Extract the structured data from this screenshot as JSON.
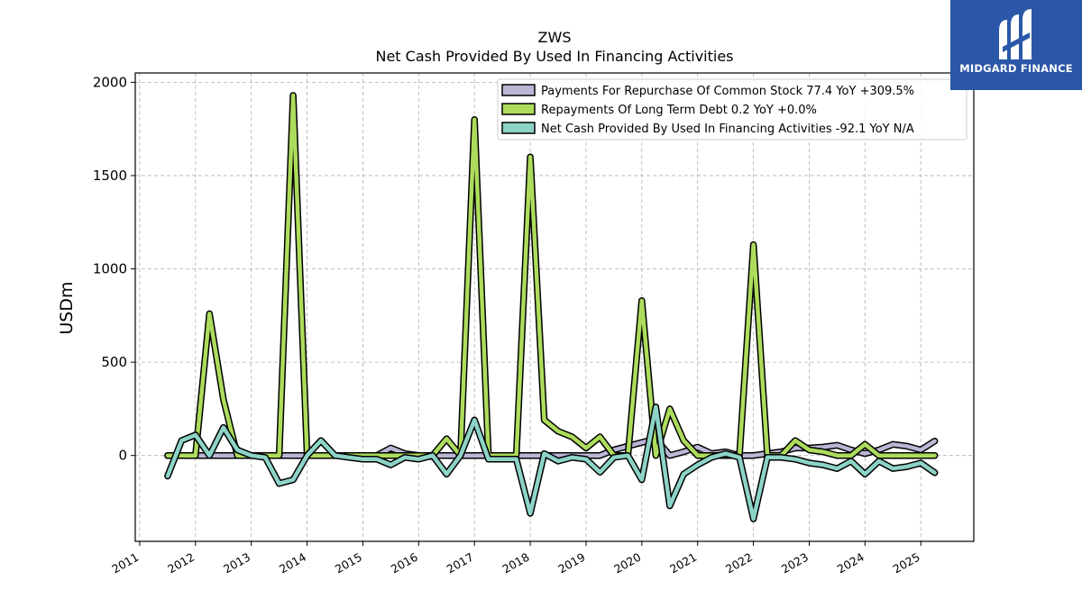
{
  "colors": {
    "repurchase": "#bcb6d6",
    "repayments": "#addc5c",
    "net_cash": "#8dd3c7",
    "outline": "#000000",
    "grid": "#b0b0b0",
    "logo_bg": "#2b57a8"
  },
  "logo": {
    "brand": "MIDGARD FINANCE",
    "icon": "midgard-logo-icon"
  },
  "chart_data": {
    "type": "line",
    "title": "ZWS",
    "subtitle": "Net Cash Provided By Used In Financing Activities",
    "xlabel": "",
    "ylabel": "USDm",
    "xlim": [
      2010.92,
      2025.95
    ],
    "ylim": [
      -460,
      2050
    ],
    "yticks": [
      0,
      500,
      1000,
      1500,
      2000
    ],
    "xticks": [
      "2011",
      "2012",
      "2013",
      "2014",
      "2015",
      "2016",
      "2017",
      "2018",
      "2019",
      "2020",
      "2021",
      "2022",
      "2023",
      "2024",
      "2025"
    ],
    "grid": true,
    "legend_position": "upper right",
    "x": [
      2011.5,
      2011.75,
      2012.0,
      2012.25,
      2012.5,
      2012.75,
      2013.0,
      2013.25,
      2013.5,
      2013.75,
      2014.0,
      2014.25,
      2014.5,
      2014.75,
      2015.0,
      2015.25,
      2015.5,
      2015.75,
      2016.0,
      2016.25,
      2016.5,
      2016.75,
      2017.0,
      2017.25,
      2017.5,
      2017.75,
      2018.0,
      2018.25,
      2018.5,
      2018.75,
      2019.0,
      2019.25,
      2019.5,
      2019.75,
      2020.0,
      2020.25,
      2020.5,
      2020.75,
      2021.0,
      2021.25,
      2021.5,
      2021.75,
      2022.0,
      2022.25,
      2022.5,
      2022.75,
      2023.0,
      2023.25,
      2023.5,
      2023.75,
      2024.0,
      2024.25,
      2024.5,
      2024.75,
      2025.0,
      2025.25
    ],
    "series": [
      {
        "name": "Payments For Repurchase Of Common Stock  77.4 YoY +309.5%",
        "color_key": "repurchase",
        "values": [
          0,
          0,
          0,
          0,
          0,
          0,
          0,
          0,
          0,
          0,
          0,
          0,
          0,
          0,
          0,
          0,
          40,
          10,
          0,
          0,
          0,
          0,
          0,
          0,
          0,
          0,
          0,
          0,
          0,
          0,
          0,
          0,
          30,
          50,
          70,
          90,
          0,
          20,
          45,
          10,
          20,
          0,
          0,
          10,
          20,
          40,
          40,
          45,
          55,
          30,
          10,
          30,
          60,
          50,
          30,
          77.4
        ]
      },
      {
        "name": "Repayments Of Long Term Debt  0.2 YoY +0.0%",
        "color_key": "repayments",
        "values": [
          0,
          0,
          0,
          760,
          300,
          0,
          0,
          0,
          0,
          1930,
          0,
          0,
          0,
          0,
          0,
          0,
          0,
          0,
          0,
          0,
          90,
          0,
          1800,
          0,
          0,
          0,
          1600,
          190,
          130,
          100,
          40,
          100,
          0,
          0,
          830,
          0,
          250,
          80,
          0,
          0,
          0,
          0,
          1130,
          0,
          0,
          80,
          30,
          20,
          0,
          0,
          60,
          0,
          0,
          0,
          0,
          0.2
        ]
      },
      {
        "name": "Net Cash Provided By Used In Financing Activities  -92.1 YoY N/A",
        "color_key": "net_cash",
        "values": [
          -110,
          80,
          110,
          0,
          150,
          30,
          0,
          -10,
          -150,
          -130,
          0,
          80,
          0,
          -10,
          -20,
          -20,
          -50,
          -10,
          -20,
          0,
          -100,
          0,
          190,
          -20,
          -20,
          -20,
          -310,
          10,
          -30,
          -10,
          -20,
          -90,
          -10,
          0,
          -130,
          260,
          -270,
          -100,
          -50,
          -10,
          10,
          -10,
          -340,
          -10,
          -10,
          -20,
          -40,
          -50,
          -70,
          -30,
          -100,
          -30,
          -70,
          -60,
          -40,
          -92.1
        ]
      }
    ]
  }
}
